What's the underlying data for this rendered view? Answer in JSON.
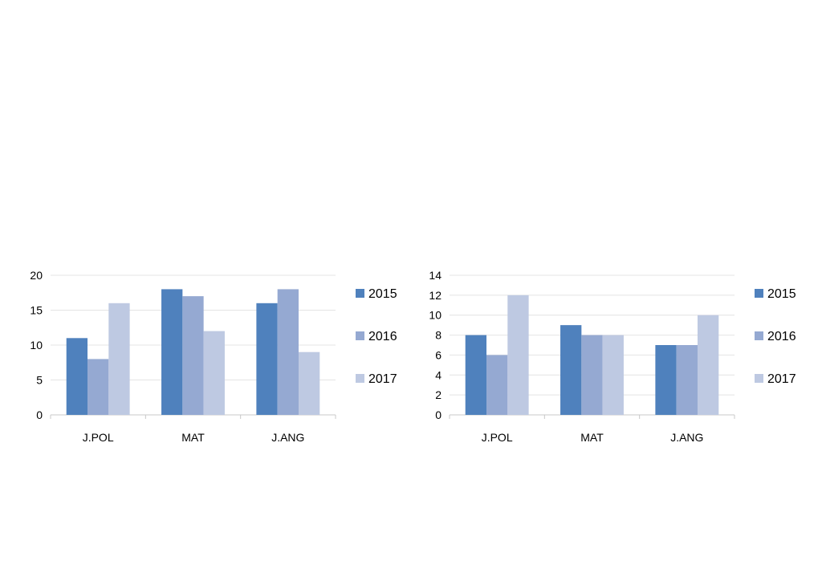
{
  "chart_data": [
    {
      "type": "bar",
      "categories": [
        "J.POL",
        "MAT",
        "J.ANG"
      ],
      "series": [
        {
          "name": "2015",
          "values": [
            11,
            18,
            16
          ]
        },
        {
          "name": "2016",
          "values": [
            8,
            17,
            18
          ]
        },
        {
          "name": "2017",
          "values": [
            16,
            12,
            9
          ]
        }
      ],
      "ylim": [
        0,
        20
      ],
      "yticks": [
        0,
        5,
        10,
        15,
        20
      ],
      "grid": true,
      "legend": "right",
      "colors": [
        "#4f81bd",
        "#95a9d2",
        "#bec9e2"
      ]
    },
    {
      "type": "bar",
      "categories": [
        "J.POL",
        "MAT",
        "J.ANG"
      ],
      "series": [
        {
          "name": "2015",
          "values": [
            8,
            9,
            7
          ]
        },
        {
          "name": "2016",
          "values": [
            6,
            8,
            7
          ]
        },
        {
          "name": "2017",
          "values": [
            12,
            8,
            10
          ]
        }
      ],
      "ylim": [
        0,
        14
      ],
      "yticks": [
        0,
        2,
        4,
        6,
        8,
        10,
        12,
        14
      ],
      "grid": true,
      "legend": "right",
      "colors": [
        "#4f81bd",
        "#95a9d2",
        "#bec9e2"
      ]
    }
  ]
}
